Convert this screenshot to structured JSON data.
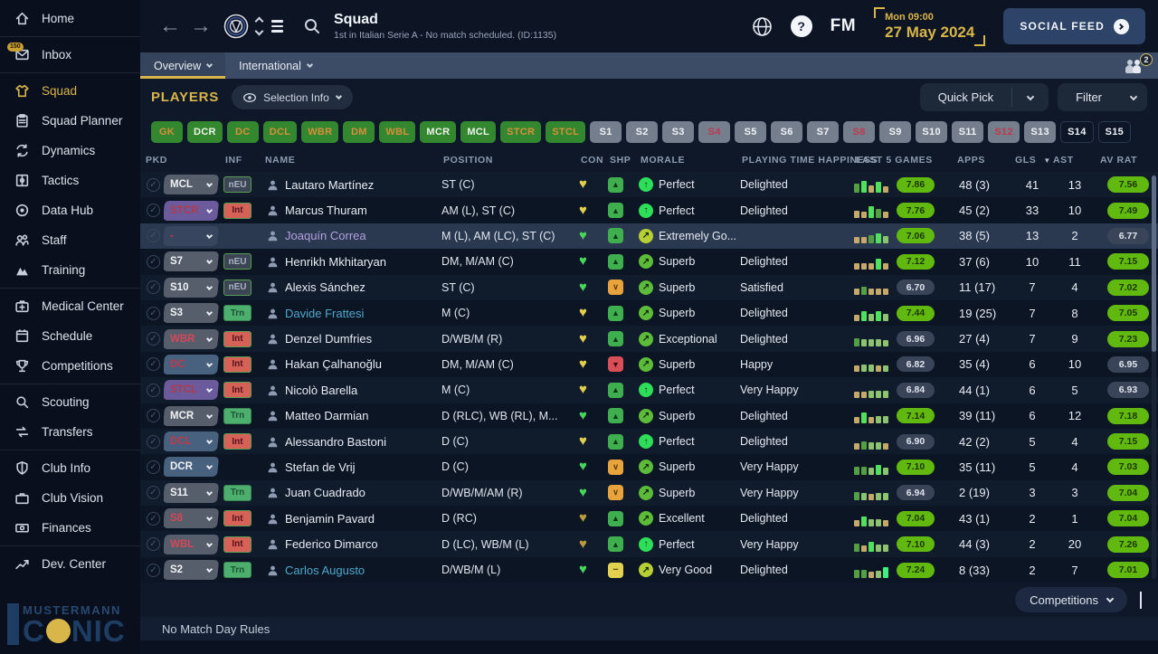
{
  "sidebar": {
    "groups": [
      [
        {
          "label": "Home",
          "icon": "home"
        }
      ],
      [
        {
          "label": "Inbox",
          "icon": "inbox",
          "badge": "150"
        }
      ],
      [
        {
          "label": "Squad",
          "icon": "shirt",
          "active": true
        },
        {
          "label": "Squad Planner",
          "icon": "clipboard"
        },
        {
          "label": "Dynamics",
          "icon": "dynamics"
        },
        {
          "label": "Tactics",
          "icon": "tactics"
        },
        {
          "label": "Data Hub",
          "icon": "datahub"
        },
        {
          "label": "Staff",
          "icon": "staff"
        },
        {
          "label": "Training",
          "icon": "training"
        }
      ],
      [
        {
          "label": "Medical Center",
          "icon": "medical"
        },
        {
          "label": "Schedule",
          "icon": "schedule"
        },
        {
          "label": "Competitions",
          "icon": "trophy"
        }
      ],
      [
        {
          "label": "Scouting",
          "icon": "scout"
        },
        {
          "label": "Transfers",
          "icon": "transfers"
        }
      ],
      [
        {
          "label": "Club Info",
          "icon": "shield"
        },
        {
          "label": "Club Vision",
          "icon": "briefcase"
        },
        {
          "label": "Finances",
          "icon": "finances"
        }
      ],
      [
        {
          "label": "Dev. Center",
          "icon": "devcenter"
        }
      ]
    ],
    "logo_top": "MUSTERMANN",
    "logo_prefix": "C",
    "logo_suffix": "NIC"
  },
  "header": {
    "title": "Squad",
    "subtitle": "1st in Italian Serie A - No match scheduled. (ID:1135)",
    "fm": "FM",
    "help": "?",
    "date_line1": "Mon 09:00",
    "date_line2": "27 May 2024",
    "social_feed": "SOCIAL FEED"
  },
  "tabs": {
    "overview": "Overview",
    "international": "International",
    "badge_count": "2"
  },
  "toolbar": {
    "players_label": "PLAYERS",
    "selection_info": "Selection Info",
    "quick_pick": "Quick Pick",
    "filter": "Filter"
  },
  "chips": [
    {
      "label": "GK",
      "style": "green-orange"
    },
    {
      "label": "DCR",
      "style": "green-white"
    },
    {
      "label": "DC",
      "style": "green-orange"
    },
    {
      "label": "DCL",
      "style": "green-orange"
    },
    {
      "label": "WBR",
      "style": "green-orange"
    },
    {
      "label": "DM",
      "style": "green-orange"
    },
    {
      "label": "WBL",
      "style": "green-orange"
    },
    {
      "label": "MCR",
      "style": "green-white"
    },
    {
      "label": "MCL",
      "style": "green-white"
    },
    {
      "label": "STCR",
      "style": "green-orange"
    },
    {
      "label": "STCL",
      "style": "green-orange"
    },
    {
      "label": "S1",
      "style": "gray-white"
    },
    {
      "label": "S2",
      "style": "gray-white"
    },
    {
      "label": "S3",
      "style": "gray-white"
    },
    {
      "label": "S4",
      "style": "gray-red"
    },
    {
      "label": "S5",
      "style": "gray-white"
    },
    {
      "label": "S6",
      "style": "gray-white"
    },
    {
      "label": "S7",
      "style": "gray-white"
    },
    {
      "label": "S8",
      "style": "gray-red"
    },
    {
      "label": "S9",
      "style": "gray-white"
    },
    {
      "label": "S10",
      "style": "gray-white"
    },
    {
      "label": "S11",
      "style": "gray-white"
    },
    {
      "label": "S12",
      "style": "gray-red"
    },
    {
      "label": "S13",
      "style": "gray-white"
    },
    {
      "label": "S14",
      "style": "dark-white"
    },
    {
      "label": "S15",
      "style": "dark-white"
    }
  ],
  "table": {
    "columns": [
      {
        "key": "pkd",
        "label": "PKD"
      },
      {
        "key": "inf",
        "label": "INF"
      },
      {
        "key": "name",
        "label": "NAME"
      },
      {
        "key": "pos",
        "label": "POSITION"
      },
      {
        "key": "con",
        "label": "CON"
      },
      {
        "key": "shp",
        "label": "SHP"
      },
      {
        "key": "morale",
        "label": "MORALE"
      },
      {
        "key": "pth",
        "label": "PLAYING TIME HAPPINESS"
      },
      {
        "key": "l5g",
        "label": "LAST 5 GAMES"
      },
      {
        "key": "apps",
        "label": "APPS"
      },
      {
        "key": "gls",
        "label": "GLS",
        "sorted": true
      },
      {
        "key": "ast",
        "label": "AST"
      },
      {
        "key": "avrat",
        "label": "AV RAT"
      }
    ],
    "rows": [
      {
        "pkd": "MCL",
        "pkd_style": "gray",
        "inf": "nEU",
        "inf_style": "neu",
        "name": "Lautaro Martínez",
        "name_style": "",
        "pos": "ST (C)",
        "con": "yellow",
        "shp": "up",
        "morale": "Perfect",
        "morale_icon": "perfect",
        "happiness": "Delighted",
        "bars": [
          [
            "g",
            10
          ],
          [
            "G",
            13
          ],
          [
            "t",
            8
          ],
          [
            "G",
            12
          ],
          [
            "t",
            7
          ]
        ],
        "l5g": "7.86",
        "l5g_style": "green",
        "apps": "48 (3)",
        "gls": "41",
        "ast": "13",
        "avrat": "7.56",
        "avrat_style": "green",
        "selected": false
      },
      {
        "pkd": "STCR",
        "pkd_style": "purple",
        "inf": "Int",
        "inf_style": "int",
        "name": "Marcus Thuram",
        "name_style": "",
        "pos": "AM (L), ST (C)",
        "con": "yellow",
        "shp": "up",
        "morale": "Perfect",
        "morale_icon": "perfect",
        "happiness": "Delighted",
        "bars": [
          [
            "t",
            8
          ],
          [
            "t",
            7
          ],
          [
            "G",
            13
          ],
          [
            "g",
            10
          ],
          [
            "t",
            7
          ]
        ],
        "l5g": "7.76",
        "l5g_style": "green",
        "apps": "45 (2)",
        "gls": "33",
        "ast": "10",
        "avrat": "7.49",
        "avrat_style": "green",
        "selected": false
      },
      {
        "pkd": "-",
        "pkd_style": "none",
        "inf": "",
        "inf_style": "",
        "name": "Joaquín Correa",
        "name_style": "lavender",
        "pos": "M (L), AM (LC), ST (C)",
        "con": "green",
        "shp": "up",
        "morale": "Extremely Go...",
        "morale_icon": "good",
        "happiness": "",
        "bars": [
          [
            "t",
            7
          ],
          [
            "t",
            7
          ],
          [
            "g",
            9
          ],
          [
            "G",
            11
          ],
          [
            "lg",
            8
          ]
        ],
        "l5g": "7.06",
        "l5g_style": "green",
        "apps": "38 (5)",
        "gls": "13",
        "ast": "2",
        "avrat": "6.77",
        "avrat_style": "gray",
        "selected": true
      },
      {
        "pkd": "S7",
        "pkd_style": "gray",
        "inf": "nEU",
        "inf_style": "neu",
        "name": "Henrikh Mkhitaryan",
        "name_style": "",
        "pos": "DM, M/AM (C)",
        "con": "green",
        "shp": "up",
        "morale": "Superb",
        "morale_icon": "superb",
        "happiness": "Delighted",
        "bars": [
          [
            "t",
            7
          ],
          [
            "t",
            7
          ],
          [
            "t",
            7
          ],
          [
            "G",
            12
          ],
          [
            "t",
            7
          ]
        ],
        "l5g": "7.12",
        "l5g_style": "green",
        "apps": "37 (6)",
        "gls": "10",
        "ast": "11",
        "avrat": "7.15",
        "avrat_style": "green",
        "selected": false
      },
      {
        "pkd": "S10",
        "pkd_style": "gray",
        "inf": "nEU",
        "inf_style": "neu",
        "name": "Alexis Sánchez",
        "name_style": "",
        "pos": "ST (C)",
        "con": "green",
        "shp": "down",
        "morale": "Superb",
        "morale_icon": "superb",
        "happiness": "Satisfied",
        "bars": [
          [
            "t",
            7
          ],
          [
            "g",
            9
          ],
          [
            "t",
            7
          ],
          [
            "t",
            7
          ],
          [
            "t",
            7
          ]
        ],
        "l5g": "6.70",
        "l5g_style": "gray",
        "apps": "11 (17)",
        "gls": "7",
        "ast": "4",
        "avrat": "7.02",
        "avrat_style": "green",
        "selected": false
      },
      {
        "pkd": "S3",
        "pkd_style": "gray",
        "inf": "Trn",
        "inf_style": "trn",
        "name": "Davide Frattesi",
        "name_style": "teal",
        "pos": "M (C)",
        "con": "yellow",
        "shp": "up",
        "morale": "Superb",
        "morale_icon": "superb",
        "happiness": "Delighted",
        "bars": [
          [
            "t",
            7
          ],
          [
            "G",
            11
          ],
          [
            "lg",
            8
          ],
          [
            "G",
            11
          ],
          [
            "lg",
            8
          ]
        ],
        "l5g": "7.44",
        "l5g_style": "green",
        "apps": "19 (25)",
        "gls": "7",
        "ast": "8",
        "avrat": "7.05",
        "avrat_style": "green",
        "selected": false
      },
      {
        "pkd": "WBR",
        "pkd_style": "gray-red",
        "inf": "Int",
        "inf_style": "int",
        "name": "Denzel Dumfries",
        "name_style": "",
        "pos": "D/WB/M (R)",
        "con": "yellow",
        "shp": "up",
        "morale": "Exceptional",
        "morale_icon": "superb",
        "happiness": "Delighted",
        "bars": [
          [
            "g",
            9
          ],
          [
            "lg",
            8
          ],
          [
            "lg",
            8
          ],
          [
            "lg",
            8
          ],
          [
            "lg",
            7
          ]
        ],
        "l5g": "6.96",
        "l5g_style": "gray",
        "apps": "27 (4)",
        "gls": "7",
        "ast": "9",
        "avrat": "7.23",
        "avrat_style": "green",
        "selected": false
      },
      {
        "pkd": "DC",
        "pkd_style": "blue",
        "inf": "Int",
        "inf_style": "int",
        "name": "Hakan Çalhanoğlu",
        "name_style": "",
        "pos": "DM, M/AM (C)",
        "con": "yellow",
        "shp": "red",
        "morale": "Superb",
        "morale_icon": "superb",
        "happiness": "Happy",
        "bars": [
          [
            "t",
            7
          ],
          [
            "lg",
            8
          ],
          [
            "lg",
            8
          ],
          [
            "t",
            7
          ],
          [
            "lg",
            7
          ]
        ],
        "l5g": "6.82",
        "l5g_style": "gray",
        "apps": "35 (4)",
        "gls": "6",
        "ast": "10",
        "avrat": "6.95",
        "avrat_style": "gray",
        "selected": false
      },
      {
        "pkd": "STCL",
        "pkd_style": "purple",
        "inf": "Int",
        "inf_style": "int",
        "name": "Nicolò Barella",
        "name_style": "",
        "pos": "M (C)",
        "con": "yellow",
        "shp": "up",
        "morale": "Perfect",
        "morale_icon": "perfect",
        "happiness": "Very Happy",
        "bars": [
          [
            "t",
            7
          ],
          [
            "t",
            7
          ],
          [
            "lg",
            8
          ],
          [
            "lg",
            8
          ],
          [
            "lg",
            8
          ]
        ],
        "l5g": "6.84",
        "l5g_style": "gray",
        "apps": "44 (1)",
        "gls": "6",
        "ast": "5",
        "avrat": "6.93",
        "avrat_style": "gray",
        "selected": false
      },
      {
        "pkd": "MCR",
        "pkd_style": "gray",
        "inf": "Trn",
        "inf_style": "trn",
        "name": "Matteo Darmian",
        "name_style": "",
        "pos": "D (RLC), WB (RL), M...",
        "con": "green",
        "shp": "up",
        "morale": "Superb",
        "morale_icon": "superb",
        "happiness": "Delighted",
        "bars": [
          [
            "t",
            7
          ],
          [
            "G",
            12
          ],
          [
            "t",
            7
          ],
          [
            "lg",
            8
          ],
          [
            "lg",
            8
          ]
        ],
        "l5g": "7.14",
        "l5g_style": "green",
        "apps": "39 (11)",
        "gls": "6",
        "ast": "12",
        "avrat": "7.18",
        "avrat_style": "green",
        "selected": false
      },
      {
        "pkd": "DCL",
        "pkd_style": "blue",
        "inf": "Int",
        "inf_style": "int",
        "name": "Alessandro Bastoni",
        "name_style": "",
        "pos": "D (C)",
        "con": "yellow",
        "shp": "up",
        "morale": "Perfect",
        "morale_icon": "perfect",
        "happiness": "Delighted",
        "bars": [
          [
            "t",
            7
          ],
          [
            "g",
            9
          ],
          [
            "lg",
            8
          ],
          [
            "lg",
            8
          ],
          [
            "t",
            7
          ]
        ],
        "l5g": "6.90",
        "l5g_style": "gray",
        "apps": "42 (2)",
        "gls": "5",
        "ast": "4",
        "avrat": "7.15",
        "avrat_style": "green",
        "selected": false
      },
      {
        "pkd": "DCR",
        "pkd_style": "blue-white",
        "inf": "",
        "inf_style": "",
        "name": "Stefan de Vrij",
        "name_style": "",
        "pos": "D (C)",
        "con": "green",
        "shp": "down",
        "morale": "Superb",
        "morale_icon": "superb",
        "happiness": "Very Happy",
        "bars": [
          [
            "g",
            9
          ],
          [
            "g",
            9
          ],
          [
            "lg",
            8
          ],
          [
            "G",
            11
          ],
          [
            "lg",
            8
          ]
        ],
        "l5g": "7.10",
        "l5g_style": "green",
        "apps": "35 (11)",
        "gls": "5",
        "ast": "4",
        "avrat": "7.03",
        "avrat_style": "green",
        "selected": false
      },
      {
        "pkd": "S11",
        "pkd_style": "gray",
        "inf": "Trn",
        "inf_style": "trn",
        "name": "Juan Cuadrado",
        "name_style": "",
        "pos": "D/WB/M/AM (R)",
        "con": "green",
        "shp": "down",
        "morale": "Superb",
        "morale_icon": "superb",
        "happiness": "Very Happy",
        "bars": [
          [
            "g",
            9
          ],
          [
            "lg",
            8
          ],
          [
            "t",
            7
          ],
          [
            "lg",
            8
          ],
          [
            "lg",
            8
          ]
        ],
        "l5g": "6.94",
        "l5g_style": "gray",
        "apps": "2 (19)",
        "gls": "3",
        "ast": "3",
        "avrat": "7.04",
        "avrat_style": "green",
        "selected": false
      },
      {
        "pkd": "S8",
        "pkd_style": "gray-red",
        "inf": "Int",
        "inf_style": "int",
        "name": "Benjamin Pavard",
        "name_style": "",
        "pos": "D (RC)",
        "con": "dark",
        "shp": "up",
        "morale": "Excellent",
        "morale_icon": "superb",
        "happiness": "Delighted",
        "bars": [
          [
            "t",
            7
          ],
          [
            "G",
            11
          ],
          [
            "lg",
            8
          ],
          [
            "lg",
            8
          ],
          [
            "t",
            7
          ]
        ],
        "l5g": "7.04",
        "l5g_style": "green",
        "apps": "43 (1)",
        "gls": "2",
        "ast": "1",
        "avrat": "7.04",
        "avrat_style": "green",
        "selected": false
      },
      {
        "pkd": "WBL",
        "pkd_style": "gray-red",
        "inf": "Int",
        "inf_style": "int",
        "name": "Federico Dimarco",
        "name_style": "",
        "pos": "D (LC), WB/M (L)",
        "con": "dark",
        "shp": "up",
        "morale": "Perfect",
        "morale_icon": "perfect",
        "happiness": "Very Happy",
        "bars": [
          [
            "g",
            9
          ],
          [
            "t",
            7
          ],
          [
            "G",
            11
          ],
          [
            "lg",
            8
          ],
          [
            "lg",
            8
          ]
        ],
        "l5g": "7.10",
        "l5g_style": "green",
        "apps": "44 (3)",
        "gls": "2",
        "ast": "20",
        "avrat": "7.26",
        "avrat_style": "green",
        "selected": false
      },
      {
        "pkd": "S2",
        "pkd_style": "gray",
        "inf": "Trn",
        "inf_style": "trn",
        "name": "Carlos Augusto",
        "name_style": "teal",
        "pos": "D/WB/M (L)",
        "con": "green",
        "shp": "flat",
        "morale": "Very Good",
        "morale_icon": "good",
        "happiness": "Delighted",
        "bars": [
          [
            "g",
            9
          ],
          [
            "g",
            9
          ],
          [
            "t",
            7
          ],
          [
            "lg",
            8
          ],
          [
            "B",
            12
          ]
        ],
        "l5g": "7.24",
        "l5g_style": "green",
        "apps": "8 (33)",
        "gls": "2",
        "ast": "7",
        "avrat": "7.01",
        "avrat_style": "green",
        "selected": false
      }
    ]
  },
  "footer": {
    "competitions": "Competitions",
    "no_match": "No Match Day Rules"
  },
  "colors": {
    "accent_gold": "#d9b64a",
    "rating_green": "#61b90f",
    "chip_green": "#33872f"
  }
}
